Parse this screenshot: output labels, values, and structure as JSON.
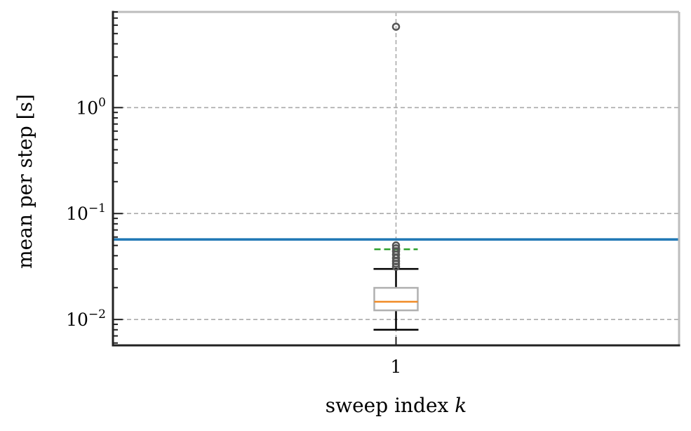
{
  "chart_data": {
    "type": "box",
    "title": "",
    "xlabel": "sweep index k",
    "ylabel": "mean per step [s]",
    "yscale": "log",
    "ylim": [
      0.0057,
      8.0
    ],
    "xlim": [
      0.5,
      1.5
    ],
    "grid": true,
    "categories": [
      "1"
    ],
    "y_ticks": [
      {
        "value": 0.01,
        "base": "10",
        "exp": "−2"
      },
      {
        "value": 0.1,
        "base": "10",
        "exp": "−1"
      },
      {
        "value": 1,
        "base": "10",
        "exp": "0"
      }
    ],
    "box": {
      "position": 1,
      "whisker_low": 0.008,
      "q1": 0.0122,
      "median": 0.0147,
      "q3": 0.0199,
      "whisker_high": 0.03,
      "mean": 0.046,
      "outliers": [
        0.0315,
        0.0335,
        0.0355,
        0.038,
        0.041,
        0.044,
        0.047,
        0.05,
        5.8
      ]
    },
    "reference_line": {
      "value": 0.057
    },
    "colors": {
      "box": "#b0b0b0",
      "median": "#f08a24",
      "mean": "#2ca02c",
      "whisker": "#000000",
      "reference": "#1f77b4",
      "outlier": "#555555",
      "grid": "#aaaaaa",
      "spine_dark": "#222222",
      "spine_light": "#bdbdbd"
    }
  }
}
